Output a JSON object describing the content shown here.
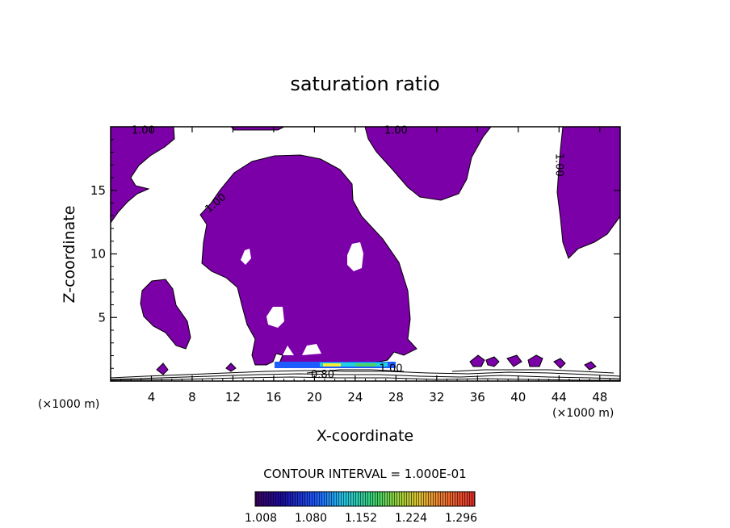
{
  "chart_data": {
    "type": "heatmap",
    "title": "saturation ratio",
    "xlabel": "X-coordinate",
    "ylabel": "Z-coordinate",
    "x_unit": "(×1000 m)",
    "y_unit": "(×1000 m)",
    "xlim": [
      0,
      50
    ],
    "ylim": [
      0,
      20
    ],
    "x_ticks": [
      4,
      8,
      12,
      16,
      20,
      24,
      28,
      32,
      36,
      40,
      44,
      48
    ],
    "y_ticks": [
      5,
      10,
      15
    ],
    "contour_labels": [
      {
        "text": "1.00",
        "x": 3.2,
        "z": 19.7,
        "rotate": 0
      },
      {
        "text": "1.00",
        "x": 28.0,
        "z": 19.7,
        "rotate": 0
      },
      {
        "text": "1.00",
        "x": 10.3,
        "z": 14.0,
        "rotate": -40
      },
      {
        "text": "1.00",
        "x": 44.0,
        "z": 17.0,
        "rotate": 90
      },
      {
        "text": "0.80",
        "x": 20.8,
        "z": 0.5,
        "rotate": 0
      },
      {
        "text": "1.00",
        "x": 27.5,
        "z": 1.0,
        "rotate": 0
      }
    ],
    "contour_interval_text": "CONTOUR INTERVAL = 1.000E-01",
    "colorbar_ticks": [
      "1.008",
      "1.080",
      "1.152",
      "1.224",
      "1.296"
    ],
    "fill_color": "#7b00a8"
  }
}
